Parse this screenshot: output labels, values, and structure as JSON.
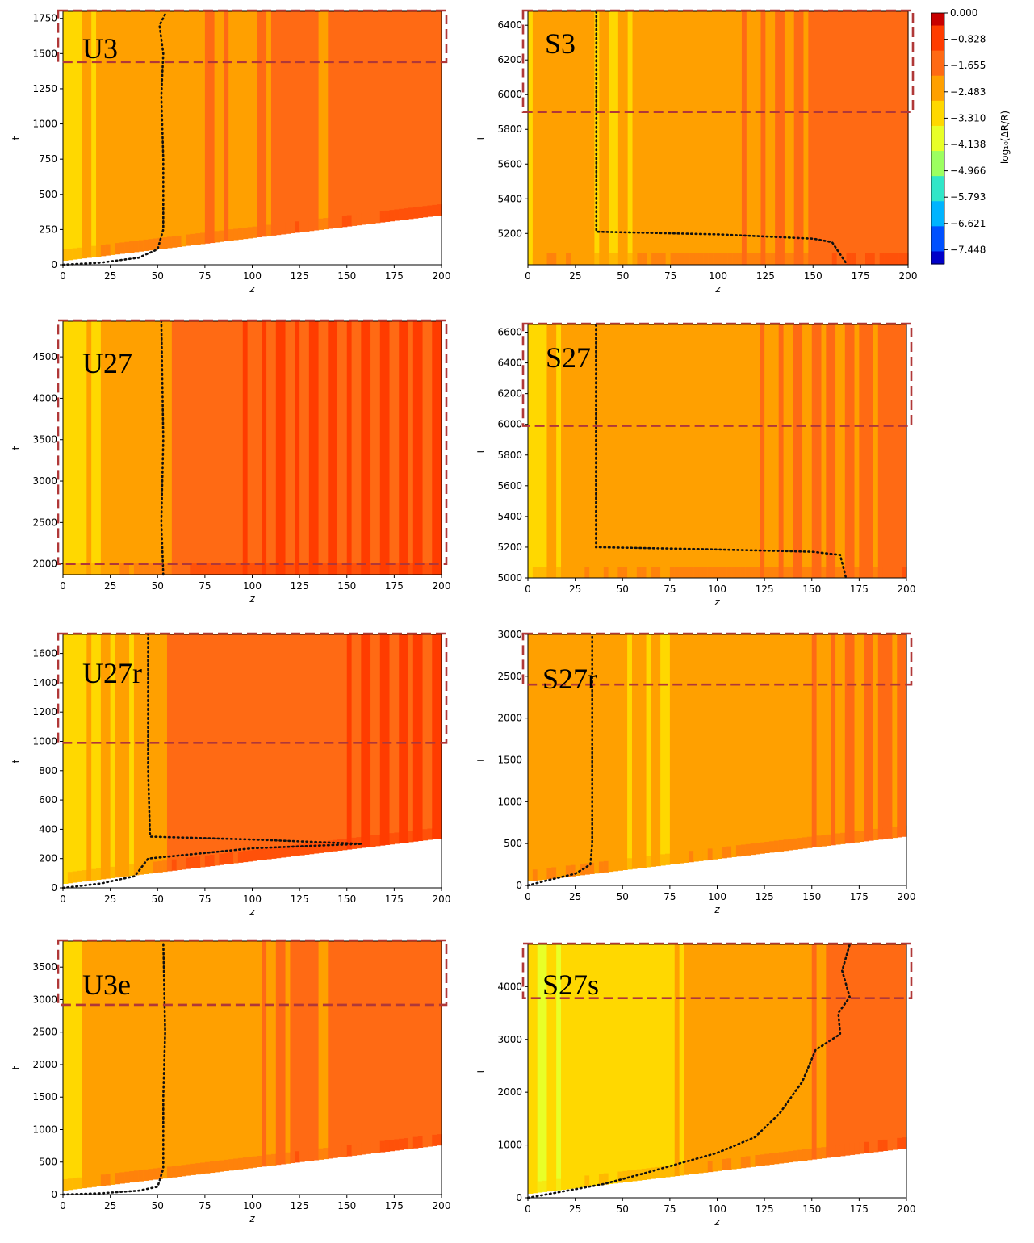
{
  "figure": {
    "colormap": [
      "#0000c8",
      "#0050ff",
      "#00b4ff",
      "#30e6c8",
      "#9cff60",
      "#e8ff28",
      "#ffd800",
      "#ffa000",
      "#ff6a14",
      "#ff3c00",
      "#c80000"
    ],
    "highlight_color": "#b03838",
    "colorbar": {
      "label": "log₁₀(ΔR/R)",
      "ticks": [
        "0.000",
        "−0.828",
        "−1.655",
        "−2.483",
        "−3.310",
        "−4.138",
        "−4.966",
        "−5.793",
        "−6.621",
        "−7.448"
      ]
    }
  },
  "chart_data": [
    {
      "type": "heatmap",
      "label": "U3",
      "xlabel": "z",
      "ylabel": "t",
      "xlim": [
        0,
        200
      ],
      "ylim": [
        0,
        1800
      ],
      "xticks": [
        0,
        25,
        50,
        75,
        100,
        125,
        150,
        175,
        200
      ],
      "yticks": [
        0,
        250,
        500,
        750,
        1000,
        1250,
        1500,
        1750
      ],
      "highlight_t_min": 1440,
      "front": [
        [
          0,
          0
        ],
        [
          20,
          15
        ],
        [
          40,
          50
        ],
        [
          50,
          110
        ],
        [
          53,
          250
        ],
        [
          53,
          750
        ],
        [
          52,
          1200
        ],
        [
          53,
          1500
        ],
        [
          51,
          1700
        ],
        [
          54,
          1780
        ]
      ],
      "bands": [
        [
          0,
          -3.3
        ],
        [
          8,
          -2.9
        ],
        [
          25,
          -2.5
        ],
        [
          40,
          -2.2
        ],
        [
          62,
          -2.4
        ],
        [
          80,
          -2.0
        ],
        [
          95,
          -2.3
        ],
        [
          110,
          -1.9
        ],
        [
          128,
          -1.7
        ],
        [
          140,
          -2.1
        ],
        [
          150,
          -1.6
        ],
        [
          160,
          -1.9
        ],
        [
          175,
          -1.4
        ],
        [
          190,
          -1.6
        ],
        [
          200,
          -1.4
        ]
      ]
    },
    {
      "type": "heatmap",
      "label": "S3",
      "xlabel": "z",
      "ylabel": "t",
      "xlim": [
        0,
        200
      ],
      "ylim": [
        5020,
        6480
      ],
      "xticks": [
        0,
        25,
        50,
        75,
        100,
        125,
        150,
        175,
        200
      ],
      "yticks": [
        5200,
        5400,
        5600,
        5800,
        6000,
        6200,
        6400
      ],
      "highlight_t_min": 5900,
      "front": [
        [
          36,
          6480
        ],
        [
          36,
          5210
        ],
        [
          100,
          5195
        ],
        [
          150,
          5170
        ],
        [
          160,
          5150
        ],
        [
          168,
          5020
        ]
      ],
      "bands": [
        [
          0,
          -3.6
        ],
        [
          4,
          -2.8
        ],
        [
          12,
          -2.5
        ],
        [
          50,
          -2.9
        ],
        [
          60,
          -2.5
        ],
        [
          100,
          -2.2
        ],
        [
          130,
          -2.0
        ],
        [
          160,
          -1.8
        ],
        [
          200,
          -1.5
        ]
      ]
    },
    {
      "type": "heatmap",
      "label": "U27",
      "xlabel": "z",
      "ylabel": "t",
      "xlim": [
        0,
        200
      ],
      "ylim": [
        1870,
        4930
      ],
      "xticks": [
        0,
        25,
        50,
        75,
        100,
        125,
        150,
        175,
        200
      ],
      "yticks": [
        2000,
        2500,
        3000,
        3500,
        4000,
        4500
      ],
      "highlight_t_min": 2000,
      "front": [
        [
          53,
          1870
        ],
        [
          52,
          2500
        ],
        [
          53,
          3500
        ],
        [
          52,
          4930
        ]
      ],
      "bands": [
        [
          0,
          -3.3
        ],
        [
          12,
          -2.9
        ],
        [
          28,
          -2.5
        ],
        [
          48,
          -2.2
        ],
        [
          62,
          -1.9
        ],
        [
          75,
          -1.5
        ],
        [
          115,
          -1.2
        ],
        [
          200,
          -1.2
        ]
      ]
    },
    {
      "type": "heatmap",
      "label": "S27",
      "xlabel": "z",
      "ylabel": "t",
      "xlim": [
        0,
        200
      ],
      "ylim": [
        5000,
        6650
      ],
      "xticks": [
        0,
        25,
        50,
        75,
        100,
        125,
        150,
        175,
        200
      ],
      "yticks": [
        5000,
        5200,
        5400,
        5600,
        5800,
        6000,
        6200,
        6400,
        6600
      ],
      "highlight_t_min": 5990,
      "front": [
        [
          36,
          6650
        ],
        [
          36,
          5200
        ],
        [
          100,
          5185
        ],
        [
          150,
          5170
        ],
        [
          165,
          5150
        ],
        [
          168,
          5000
        ]
      ],
      "bands": [
        [
          0,
          -3.6
        ],
        [
          8,
          -2.8
        ],
        [
          30,
          -2.6
        ],
        [
          60,
          -2.5
        ],
        [
          110,
          -2.2
        ],
        [
          150,
          -2.0
        ],
        [
          200,
          -1.8
        ]
      ]
    },
    {
      "type": "heatmap",
      "label": "U27r",
      "xlabel": "z",
      "ylabel": "t",
      "xlim": [
        0,
        200
      ],
      "ylim": [
        0,
        1730
      ],
      "xticks": [
        0,
        25,
        50,
        75,
        100,
        125,
        150,
        175,
        200
      ],
      "yticks": [
        0,
        200,
        400,
        600,
        800,
        1000,
        1200,
        1400,
        1600
      ],
      "highlight_t_min": 990,
      "front": [
        [
          0,
          0
        ],
        [
          20,
          30
        ],
        [
          38,
          80
        ],
        [
          45,
          200
        ],
        [
          100,
          270
        ],
        [
          158,
          300
        ],
        [
          100,
          330
        ],
        [
          46,
          350
        ],
        [
          45,
          800
        ],
        [
          45,
          1730
        ]
      ],
      "bands": [
        [
          0,
          -3.4
        ],
        [
          10,
          -2.9
        ],
        [
          45,
          -2.6
        ],
        [
          52,
          -2.2
        ],
        [
          58,
          -1.8
        ],
        [
          68,
          -1.6
        ],
        [
          120,
          -1.5
        ],
        [
          160,
          -1.2
        ],
        [
          200,
          -1.2
        ]
      ]
    },
    {
      "type": "heatmap",
      "label": "S27r",
      "xlabel": "z",
      "ylabel": "t",
      "xlim": [
        0,
        200
      ],
      "ylim": [
        0,
        3000
      ],
      "xticks": [
        0,
        25,
        50,
        75,
        100,
        125,
        150,
        175,
        200
      ],
      "yticks": [
        0,
        500,
        1000,
        1500,
        2000,
        2500,
        3000
      ],
      "highlight_t_min": 2400,
      "front": [
        [
          0,
          0
        ],
        [
          10,
          60
        ],
        [
          25,
          140
        ],
        [
          33,
          250
        ],
        [
          34,
          500
        ],
        [
          34,
          3000
        ]
      ],
      "bands": [
        [
          0,
          -2.6
        ],
        [
          25,
          -2.4
        ],
        [
          68,
          -2.8
        ],
        [
          110,
          -2.4
        ],
        [
          150,
          -2.1
        ],
        [
          200,
          -1.9
        ]
      ]
    },
    {
      "type": "heatmap",
      "label": "U3e",
      "xlabel": "z",
      "ylabel": "t",
      "xlim": [
        0,
        200
      ],
      "ylim": [
        0,
        3900
      ],
      "xticks": [
        0,
        25,
        50,
        75,
        100,
        125,
        150,
        175,
        200
      ],
      "yticks": [
        0,
        500,
        1000,
        1500,
        2000,
        2500,
        3000,
        3500
      ],
      "highlight_t_min": 2920,
      "front": [
        [
          0,
          0
        ],
        [
          20,
          20
        ],
        [
          40,
          60
        ],
        [
          50,
          120
        ],
        [
          53,
          400
        ],
        [
          53,
          1500
        ],
        [
          54,
          2500
        ],
        [
          53,
          3900
        ]
      ],
      "bands": [
        [
          0,
          -3.3
        ],
        [
          8,
          -2.8
        ],
        [
          25,
          -2.5
        ],
        [
          40,
          -2.3
        ],
        [
          60,
          -2.4
        ],
        [
          80,
          -2.1
        ],
        [
          95,
          -2.3
        ],
        [
          110,
          -2.0
        ],
        [
          128,
          -1.8
        ],
        [
          140,
          -2.1
        ],
        [
          150,
          -1.7
        ],
        [
          165,
          -1.9
        ],
        [
          175,
          -1.5
        ],
        [
          190,
          -1.7
        ],
        [
          200,
          -1.4
        ]
      ]
    },
    {
      "type": "heatmap",
      "label": "S27s",
      "xlabel": "z",
      "ylabel": "t",
      "xlim": [
        0,
        200
      ],
      "ylim": [
        0,
        4800
      ],
      "xticks": [
        0,
        25,
        50,
        75,
        100,
        125,
        150,
        175,
        200
      ],
      "yticks": [
        0,
        1000,
        2000,
        3000,
        4000
      ],
      "highlight_t_min": 3780,
      "front": [
        [
          0,
          0
        ],
        [
          40,
          260
        ],
        [
          60,
          450
        ],
        [
          80,
          650
        ],
        [
          100,
          850
        ],
        [
          120,
          1150
        ],
        [
          133,
          1600
        ],
        [
          145,
          2200
        ],
        [
          152,
          2800
        ],
        [
          165,
          3100
        ],
        [
          164,
          3500
        ],
        [
          170,
          3800
        ],
        [
          166,
          4300
        ],
        [
          170,
          4800
        ]
      ],
      "bands": [
        [
          0,
          -3.6
        ],
        [
          35,
          -3.4
        ],
        [
          50,
          -3.2
        ],
        [
          78,
          -2.9
        ],
        [
          88,
          -2.6
        ],
        [
          120,
          -2.4
        ],
        [
          150,
          -2.1
        ],
        [
          170,
          -1.8
        ],
        [
          200,
          -1.6
        ]
      ]
    }
  ]
}
